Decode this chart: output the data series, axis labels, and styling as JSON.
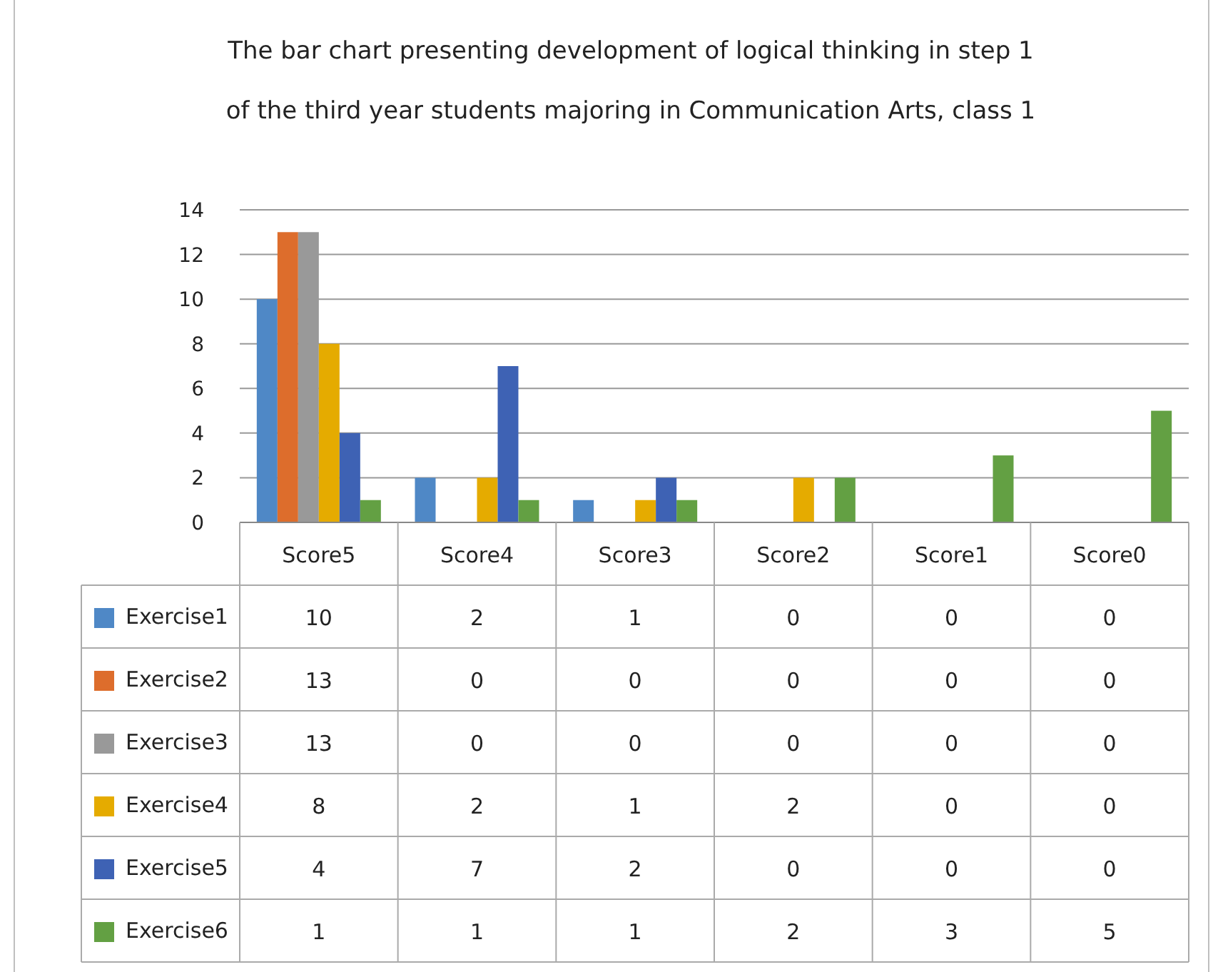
{
  "chart_data": {
    "type": "bar",
    "title": "The bar chart presenting development of logical thinking in step 1\nof the third year students majoring in Communication Arts, class 1",
    "categories": [
      "Score5",
      "Score4",
      "Score3",
      "Score2",
      "Score1",
      "Score0"
    ],
    "series": [
      {
        "name": "Exercise1",
        "color": "#4f88c6",
        "values": [
          10,
          2,
          1,
          0,
          0,
          0
        ]
      },
      {
        "name": "Exercise2",
        "color": "#dd6d2c",
        "values": [
          13,
          0,
          0,
          0,
          0,
          0
        ]
      },
      {
        "name": "Exercise3",
        "color": "#999999",
        "values": [
          13,
          0,
          0,
          0,
          0,
          0
        ]
      },
      {
        "name": "Exercise4",
        "color": "#e5ab00",
        "values": [
          8,
          2,
          1,
          2,
          0,
          0
        ]
      },
      {
        "name": "Exercise5",
        "color": "#3e62b4",
        "values": [
          4,
          7,
          2,
          0,
          0,
          0
        ]
      },
      {
        "name": "Exercise6",
        "color": "#63a043",
        "values": [
          1,
          1,
          1,
          2,
          3,
          5
        ]
      }
    ],
    "ylim": [
      0,
      14
    ],
    "yticks": [
      0,
      2,
      4,
      6,
      8,
      10,
      12,
      14
    ],
    "grid": "y",
    "legend": "bottom",
    "data_labels": true
  }
}
